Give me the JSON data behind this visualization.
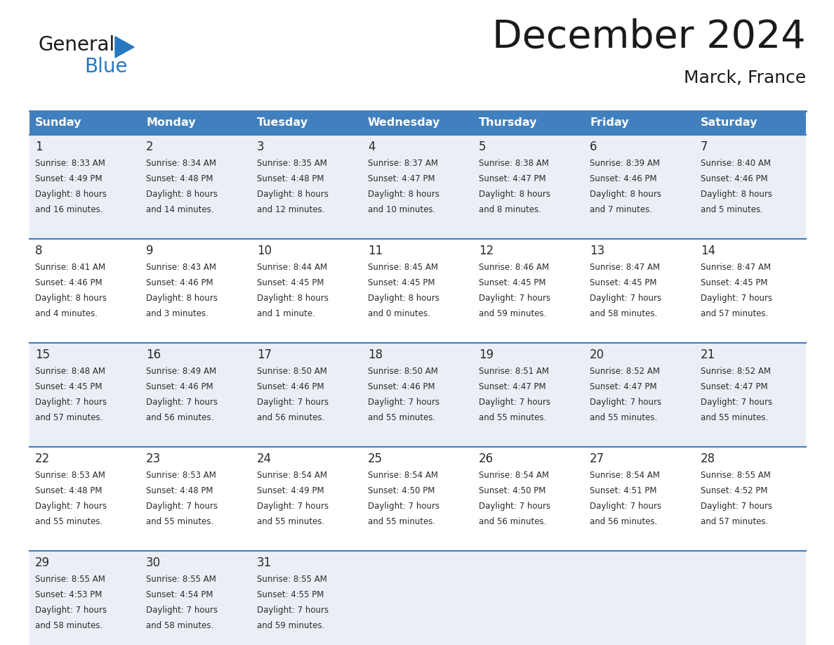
{
  "title": "December 2024",
  "subtitle": "Marck, France",
  "header_bg": "#4080BF",
  "header_text_color": "#FFFFFF",
  "cell_bg_odd": "#EAEFF5",
  "cell_bg_even": "#FFFFFF",
  "border_color": "#4080BF",
  "logo_general_color": "#1a1a1a",
  "logo_blue_color": "#2878C0",
  "logo_triangle_color": "#2878C0",
  "day_names": [
    "Sunday",
    "Monday",
    "Tuesday",
    "Wednesday",
    "Thursday",
    "Friday",
    "Saturday"
  ],
  "days": [
    {
      "day": 1,
      "col": 0,
      "row": 0,
      "sunrise": "8:33 AM",
      "sunset": "4:49 PM",
      "daylight": "8 hours and 16 minutes."
    },
    {
      "day": 2,
      "col": 1,
      "row": 0,
      "sunrise": "8:34 AM",
      "sunset": "4:48 PM",
      "daylight": "8 hours and 14 minutes."
    },
    {
      "day": 3,
      "col": 2,
      "row": 0,
      "sunrise": "8:35 AM",
      "sunset": "4:48 PM",
      "daylight": "8 hours and 12 minutes."
    },
    {
      "day": 4,
      "col": 3,
      "row": 0,
      "sunrise": "8:37 AM",
      "sunset": "4:47 PM",
      "daylight": "8 hours and 10 minutes."
    },
    {
      "day": 5,
      "col": 4,
      "row": 0,
      "sunrise": "8:38 AM",
      "sunset": "4:47 PM",
      "daylight": "8 hours and 8 minutes."
    },
    {
      "day": 6,
      "col": 5,
      "row": 0,
      "sunrise": "8:39 AM",
      "sunset": "4:46 PM",
      "daylight": "8 hours and 7 minutes."
    },
    {
      "day": 7,
      "col": 6,
      "row": 0,
      "sunrise": "8:40 AM",
      "sunset": "4:46 PM",
      "daylight": "8 hours and 5 minutes."
    },
    {
      "day": 8,
      "col": 0,
      "row": 1,
      "sunrise": "8:41 AM",
      "sunset": "4:46 PM",
      "daylight": "8 hours and 4 minutes."
    },
    {
      "day": 9,
      "col": 1,
      "row": 1,
      "sunrise": "8:43 AM",
      "sunset": "4:46 PM",
      "daylight": "8 hours and 3 minutes."
    },
    {
      "day": 10,
      "col": 2,
      "row": 1,
      "sunrise": "8:44 AM",
      "sunset": "4:45 PM",
      "daylight": "8 hours and 1 minute."
    },
    {
      "day": 11,
      "col": 3,
      "row": 1,
      "sunrise": "8:45 AM",
      "sunset": "4:45 PM",
      "daylight": "8 hours and 0 minutes."
    },
    {
      "day": 12,
      "col": 4,
      "row": 1,
      "sunrise": "8:46 AM",
      "sunset": "4:45 PM",
      "daylight": "7 hours and 59 minutes."
    },
    {
      "day": 13,
      "col": 5,
      "row": 1,
      "sunrise": "8:47 AM",
      "sunset": "4:45 PM",
      "daylight": "7 hours and 58 minutes."
    },
    {
      "day": 14,
      "col": 6,
      "row": 1,
      "sunrise": "8:47 AM",
      "sunset": "4:45 PM",
      "daylight": "7 hours and 57 minutes."
    },
    {
      "day": 15,
      "col": 0,
      "row": 2,
      "sunrise": "8:48 AM",
      "sunset": "4:45 PM",
      "daylight": "7 hours and 57 minutes."
    },
    {
      "day": 16,
      "col": 1,
      "row": 2,
      "sunrise": "8:49 AM",
      "sunset": "4:46 PM",
      "daylight": "7 hours and 56 minutes."
    },
    {
      "day": 17,
      "col": 2,
      "row": 2,
      "sunrise": "8:50 AM",
      "sunset": "4:46 PM",
      "daylight": "7 hours and 56 minutes."
    },
    {
      "day": 18,
      "col": 3,
      "row": 2,
      "sunrise": "8:50 AM",
      "sunset": "4:46 PM",
      "daylight": "7 hours and 55 minutes."
    },
    {
      "day": 19,
      "col": 4,
      "row": 2,
      "sunrise": "8:51 AM",
      "sunset": "4:47 PM",
      "daylight": "7 hours and 55 minutes."
    },
    {
      "day": 20,
      "col": 5,
      "row": 2,
      "sunrise": "8:52 AM",
      "sunset": "4:47 PM",
      "daylight": "7 hours and 55 minutes."
    },
    {
      "day": 21,
      "col": 6,
      "row": 2,
      "sunrise": "8:52 AM",
      "sunset": "4:47 PM",
      "daylight": "7 hours and 55 minutes."
    },
    {
      "day": 22,
      "col": 0,
      "row": 3,
      "sunrise": "8:53 AM",
      "sunset": "4:48 PM",
      "daylight": "7 hours and 55 minutes."
    },
    {
      "day": 23,
      "col": 1,
      "row": 3,
      "sunrise": "8:53 AM",
      "sunset": "4:48 PM",
      "daylight": "7 hours and 55 minutes."
    },
    {
      "day": 24,
      "col": 2,
      "row": 3,
      "sunrise": "8:54 AM",
      "sunset": "4:49 PM",
      "daylight": "7 hours and 55 minutes."
    },
    {
      "day": 25,
      "col": 3,
      "row": 3,
      "sunrise": "8:54 AM",
      "sunset": "4:50 PM",
      "daylight": "7 hours and 55 minutes."
    },
    {
      "day": 26,
      "col": 4,
      "row": 3,
      "sunrise": "8:54 AM",
      "sunset": "4:50 PM",
      "daylight": "7 hours and 56 minutes."
    },
    {
      "day": 27,
      "col": 5,
      "row": 3,
      "sunrise": "8:54 AM",
      "sunset": "4:51 PM",
      "daylight": "7 hours and 56 minutes."
    },
    {
      "day": 28,
      "col": 6,
      "row": 3,
      "sunrise": "8:55 AM",
      "sunset": "4:52 PM",
      "daylight": "7 hours and 57 minutes."
    },
    {
      "day": 29,
      "col": 0,
      "row": 4,
      "sunrise": "8:55 AM",
      "sunset": "4:53 PM",
      "daylight": "7 hours and 58 minutes."
    },
    {
      "day": 30,
      "col": 1,
      "row": 4,
      "sunrise": "8:55 AM",
      "sunset": "4:54 PM",
      "daylight": "7 hours and 58 minutes."
    },
    {
      "day": 31,
      "col": 2,
      "row": 4,
      "sunrise": "8:55 AM",
      "sunset": "4:55 PM",
      "daylight": "7 hours and 59 minutes."
    }
  ]
}
